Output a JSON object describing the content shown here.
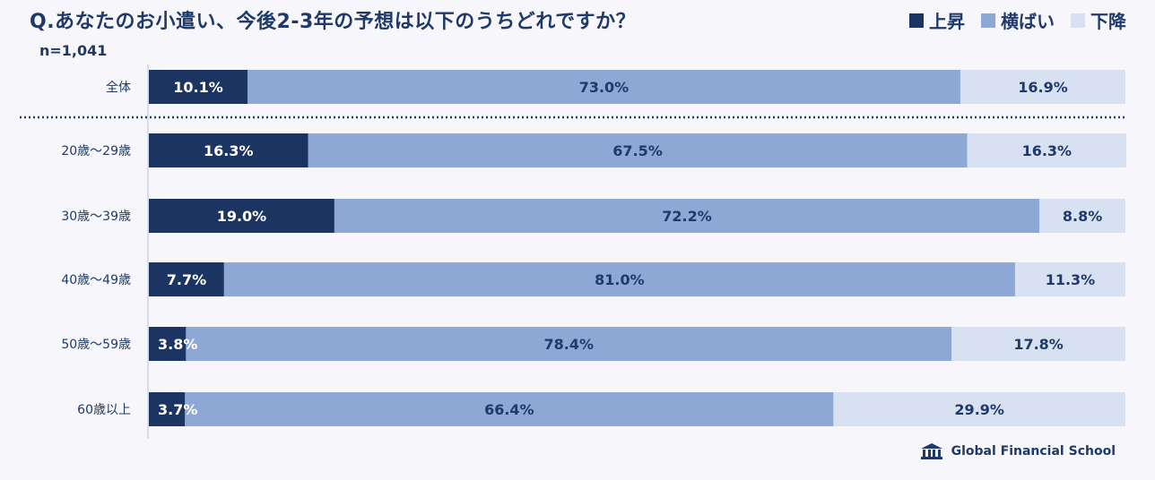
{
  "title": "Q.あなたのお小遣い、今後2-3年の予想は以下のうちどれですか？",
  "sample_size": "n=1,041",
  "legend": [
    {
      "label": "上昇",
      "color": "#1c3461"
    },
    {
      "label": "横ばい",
      "color": "#8ea8d6"
    },
    {
      "label": "下降",
      "color": "#d8e1f1"
    }
  ],
  "brand": "Global Financial School",
  "chart_data": {
    "type": "bar",
    "orientation": "horizontal",
    "stacked": "100%",
    "categories": [
      "全体",
      "20歳～29歳",
      "30歳～39歳",
      "40歳～49歳",
      "50歳～59歳",
      "60歳以上"
    ],
    "series": [
      {
        "name": "上昇",
        "color": "#1c3461",
        "values": [
          10.1,
          16.3,
          19.0,
          7.7,
          3.8,
          3.7
        ]
      },
      {
        "name": "横ばい",
        "color": "#8ea8d6",
        "values": [
          73.0,
          67.5,
          72.2,
          81.0,
          78.4,
          66.4
        ]
      },
      {
        "name": "下降",
        "color": "#d8e1f1",
        "values": [
          16.9,
          16.3,
          8.8,
          11.3,
          17.8,
          29.9
        ]
      }
    ],
    "data_labels": [
      [
        "10.1%",
        "73.0%",
        "16.9%"
      ],
      [
        "16.3%",
        "67.5%",
        "16.3%"
      ],
      [
        "19.0%",
        "72.2%",
        "8.8%"
      ],
      [
        "7.7%",
        "81.0%",
        "11.3%"
      ],
      [
        "3.8%",
        "78.4%",
        "17.8%"
      ],
      [
        "3.7%",
        "66.4%",
        "29.9%"
      ]
    ],
    "xlim": [
      0,
      100
    ],
    "separator_after_first": true,
    "grid": false
  }
}
